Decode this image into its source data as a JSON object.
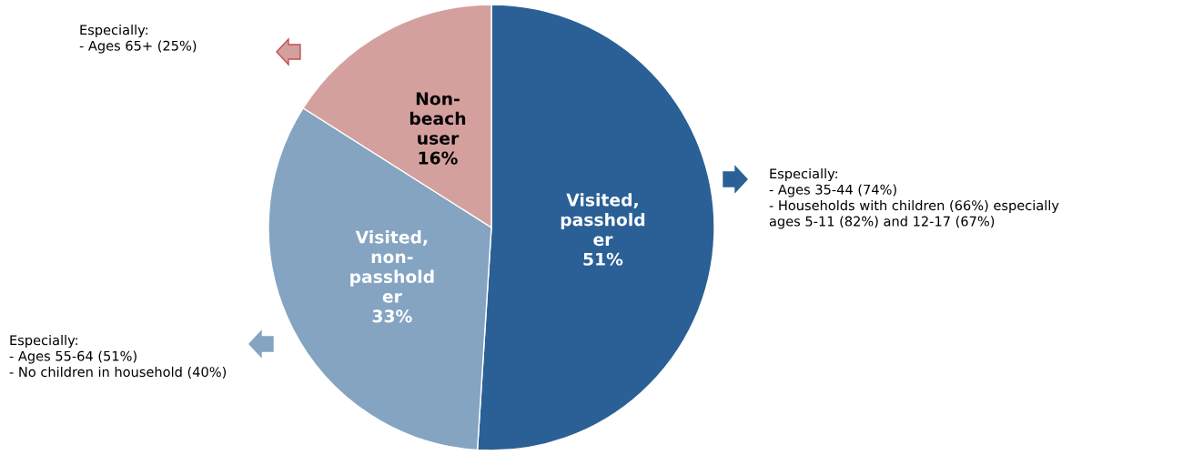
{
  "chart_data": {
    "type": "pie",
    "categories": [
      "Visited,\npasshold\ner",
      "Visited,\nnon-\npasshold\ner",
      "Non-\nbeach\nuser"
    ],
    "values": [
      51,
      33,
      16
    ],
    "colors": [
      "#2a6096",
      "#84a4c2",
      "#d4a09e"
    ],
    "value_labels": [
      "51%",
      "33%",
      "16%"
    ],
    "annotations": [
      "Especially:\n- Ages 35-44 (74%)\n- Households with children (66%) especially\nages 5-11 (82%) and 12-17 (67%)",
      "Especially:\n- Ages 55-64 (51%)\n- No children in household (40%)",
      "Especially:\n- Ages 65+ (25%)"
    ]
  }
}
